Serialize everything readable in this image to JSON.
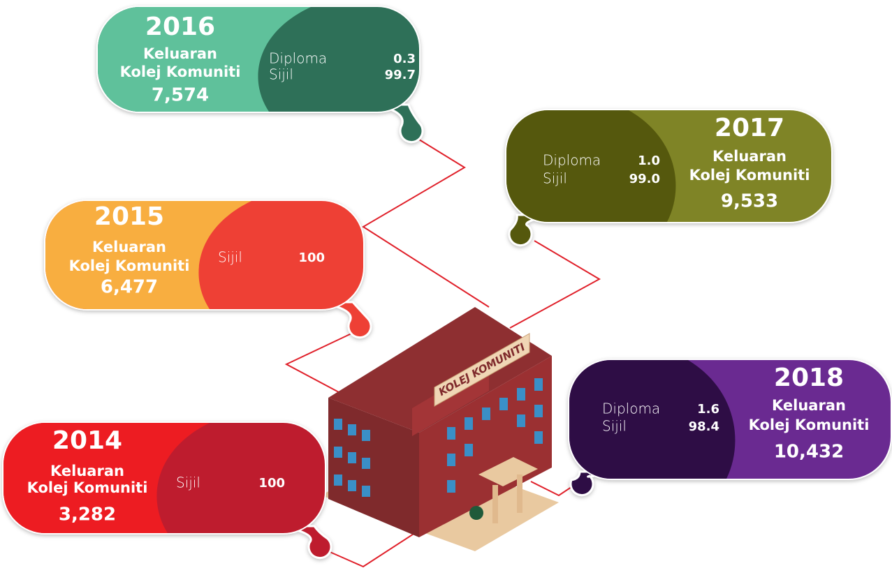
{
  "cards": [
    {
      "year": "2014",
      "label": [
        "Keluaran",
        "Kolej Komuniti"
      ],
      "total": "3,282",
      "breakdown": [
        {
          "name": "Sijil",
          "value": "100"
        }
      ]
    },
    {
      "year": "2015",
      "label": [
        "Keluaran",
        "Kolej Komuniti"
      ],
      "total": "6,477",
      "breakdown": [
        {
          "name": "Sijil",
          "value": "100"
        }
      ]
    },
    {
      "year": "2016",
      "label": [
        "Keluaran",
        "Kolej Komuniti"
      ],
      "total": "7,574",
      "breakdown": [
        {
          "name": "Diploma",
          "value": "0.3"
        },
        {
          "name": "Sijil",
          "value": "99.7"
        }
      ]
    },
    {
      "year": "2017",
      "label": [
        "Keluaran",
        "Kolej Komuniti"
      ],
      "total": "9,533",
      "breakdown": [
        {
          "name": "Diploma",
          "value": "1.0"
        },
        {
          "name": "Sijil",
          "value": "99.0"
        }
      ]
    },
    {
      "year": "2018",
      "label": [
        "Keluaran",
        "Kolej Komuniti"
      ],
      "total": "10,432",
      "breakdown": [
        {
          "name": "Diploma",
          "value": "1.6"
        },
        {
          "name": "Sijil",
          "value": "98.4"
        }
      ]
    }
  ],
  "building": {
    "sign": "KOLEJ KOMUNITI"
  }
}
